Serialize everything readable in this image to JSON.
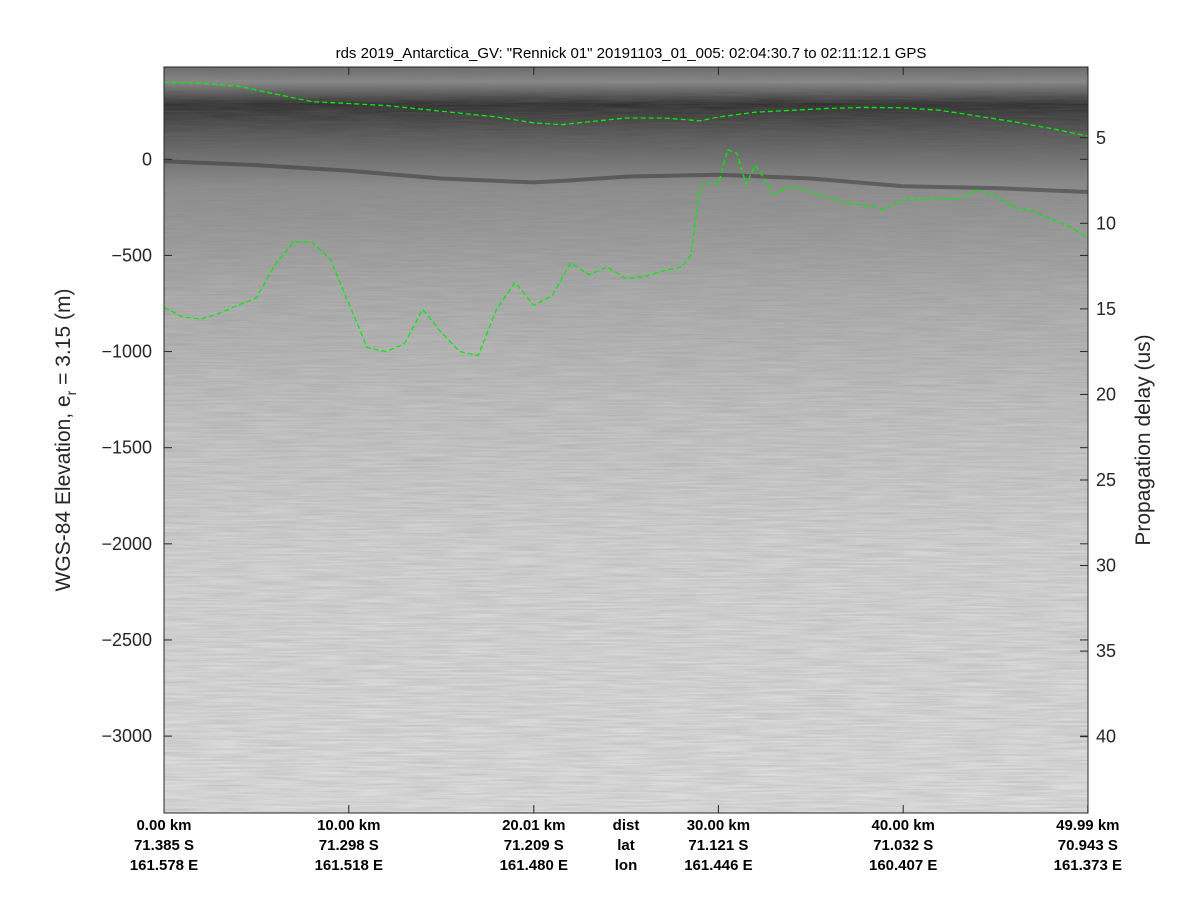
{
  "chart_data": {
    "type": "radargram",
    "title": "rds 2019_Antarctica_GV: \"Rennick 01\"  20191103_01_005: 02:04:30.7 to 02:11:12.1 GPS",
    "ylabel": "WGS-84 Elevation, e",
    "ylabel_sub": "r",
    "ylabel_tail": " = 3.15 (m)",
    "y2label": "Propagation delay (us)",
    "ylim": [
      -3400,
      480
    ],
    "y_ticks": [
      0,
      -500,
      -1000,
      -1500,
      -2000,
      -2500,
      -3000
    ],
    "y2_ticks": [
      {
        "label": "5",
        "elev": 112
      },
      {
        "label": "10",
        "elev": -333
      },
      {
        "label": "15",
        "elev": -778
      },
      {
        "label": "20",
        "elev": -1223
      },
      {
        "label": "25",
        "elev": -1668
      },
      {
        "label": "30",
        "elev": -2113
      },
      {
        "label": "35",
        "elev": -2558
      },
      {
        "label": "40",
        "elev": -3003
      }
    ],
    "xlim": [
      0,
      50
    ],
    "x_ticks": [
      {
        "dist": "0.00 km",
        "lat": "71.385 S",
        "lon": "161.578 E",
        "km": 0
      },
      {
        "dist": "10.00 km",
        "lat": "71.298 S",
        "lon": "161.518 E",
        "km": 10
      },
      {
        "dist": "20.01 km",
        "lat": "71.209 S",
        "lon": "161.480 E",
        "km": 20.01
      },
      {
        "dist": "30.00 km",
        "lat": "71.121 S",
        "lon": "161.446 E",
        "km": 30
      },
      {
        "dist": "40.00 km",
        "lat": "71.032 S",
        "lon": "160.407 E",
        "km": 40
      },
      {
        "dist": "49.99 km",
        "lat": "70.943 S",
        "lon": "161.373 E",
        "km": 49.99
      }
    ],
    "x_row_labels": [
      "dist",
      "lat",
      "lon"
    ],
    "surface_layer": {
      "color": "#00ee00",
      "x_km": [
        0,
        2,
        4,
        6,
        8,
        10,
        12,
        14,
        16,
        18,
        20,
        21.5,
        23,
        25,
        27,
        29,
        30,
        32,
        34,
        36,
        38,
        40,
        42,
        44,
        46,
        48,
        50
      ],
      "elev": [
        400,
        395,
        380,
        340,
        300,
        290,
        280,
        260,
        240,
        220,
        190,
        180,
        195,
        215,
        215,
        200,
        220,
        245,
        255,
        265,
        270,
        268,
        255,
        225,
        195,
        160,
        120
      ]
    },
    "bed_layer": {
      "color": "#00ee00",
      "x_km": [
        0,
        1,
        2,
        3,
        4,
        5,
        6,
        7,
        8,
        9,
        10,
        11,
        12,
        13,
        14,
        15,
        16,
        17,
        18,
        19,
        20,
        21,
        22,
        23,
        24,
        25,
        26,
        27,
        28,
        28.5,
        29,
        29.5,
        30,
        30.5,
        31,
        31.5,
        32,
        33,
        34,
        35,
        36,
        37,
        38,
        39,
        40,
        41,
        42,
        43,
        44,
        45,
        46,
        47,
        48,
        49,
        50
      ],
      "elev": [
        -770,
        -820,
        -830,
        -800,
        -760,
        -720,
        -550,
        -430,
        -430,
        -520,
        -750,
        -980,
        -1000,
        -960,
        -780,
        -900,
        -1000,
        -1020,
        -780,
        -640,
        -760,
        -710,
        -540,
        -600,
        -560,
        -620,
        -610,
        -580,
        -560,
        -500,
        -150,
        -120,
        -130,
        50,
        30,
        -130,
        -30,
        -180,
        -140,
        -170,
        -200,
        -230,
        -240,
        -260,
        -210,
        -210,
        -200,
        -210,
        -160,
        -190,
        -250,
        -270,
        -310,
        -350,
        -410
      ]
    },
    "internal_layer": {
      "x_km": [
        0,
        5,
        10,
        15,
        20,
        22,
        25,
        30,
        35,
        40,
        45,
        50
      ],
      "elev": [
        -10,
        -30,
        -60,
        -100,
        -120,
        -110,
        -90,
        -80,
        -100,
        -140,
        -150,
        -170
      ]
    }
  }
}
